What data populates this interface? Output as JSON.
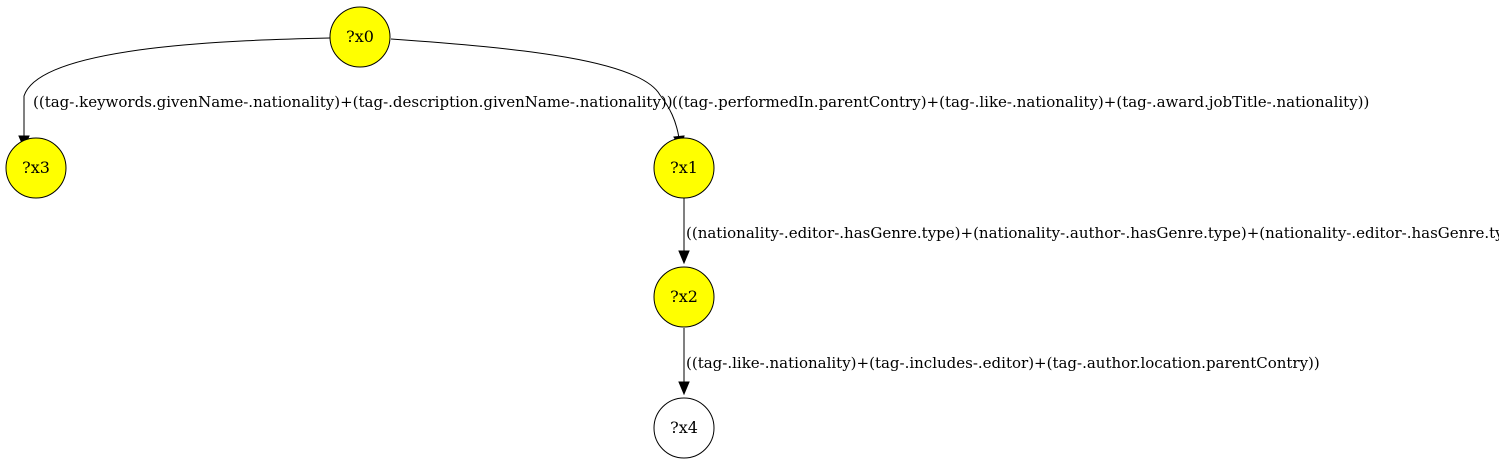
{
  "colors": {
    "highlight": "#ffff00",
    "plain": "#ffffff",
    "stroke": "#000000"
  },
  "nodes": {
    "x0": {
      "label": "?x0",
      "highlighted": true
    },
    "x1": {
      "label": "?x1",
      "highlighted": true
    },
    "x2": {
      "label": "?x2",
      "highlighted": true
    },
    "x3": {
      "label": "?x3",
      "highlighted": true
    },
    "x4": {
      "label": "?x4",
      "highlighted": false
    }
  },
  "edges": {
    "x0_x3": {
      "source": "?x0",
      "target": "?x3",
      "label": "((tag-.keywords.givenName-.nationality)+(tag-.description.givenName-.nationality))"
    },
    "x0_x1": {
      "source": "?x0",
      "target": "?x1",
      "label": "((tag-.performedIn.parentContry)+(tag-.like-.nationality)+(tag-.award.jobTitle-.nationality))"
    },
    "x1_x2": {
      "source": "?x1",
      "target": "?x2",
      "label": "((nationality-.editor-.hasGenre.type)+(nationality-.author-.hasGenre.type)+(nationality-.editor-.hasGenre.type))"
    },
    "x2_x4": {
      "source": "?x2",
      "target": "?x4",
      "label": "((tag-.like-.nationality)+(tag-.includes-.editor)+(tag-.author.location.parentContry))"
    }
  }
}
